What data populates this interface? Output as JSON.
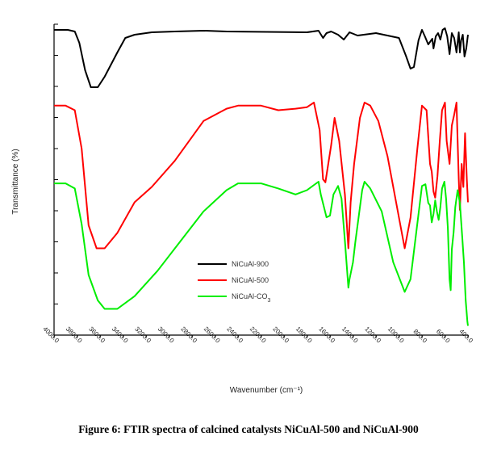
{
  "caption": "Figure 6: FTIR spectra of calcined catalysts NiCuAl-500 and NiCuAl-900",
  "chart_data": {
    "type": "line",
    "xlabel": "Wavenumber (cm⁻¹)",
    "ylabel": "Transmittance (%)",
    "xlim": [
      4000,
      400
    ],
    "x_ticks": [
      4000,
      3800,
      3600,
      3400,
      3200,
      3000,
      2800,
      2600,
      2400,
      2200,
      2000,
      1800,
      1600,
      1400,
      1200,
      1000,
      800,
      600,
      400
    ],
    "y_ticks": 10,
    "legend_position": "center-left",
    "series": [
      {
        "name": "NiCuAl-900",
        "color": "#000000",
        "points": [
          [
            4000,
            2
          ],
          [
            3880,
            2
          ],
          [
            3820,
            4
          ],
          [
            3780,
            18
          ],
          [
            3730,
            52
          ],
          [
            3680,
            73
          ],
          [
            3620,
            73
          ],
          [
            3560,
            60
          ],
          [
            3450,
            30
          ],
          [
            3380,
            12
          ],
          [
            3300,
            8
          ],
          [
            3150,
            5
          ],
          [
            2950,
            4
          ],
          [
            2700,
            3
          ],
          [
            2500,
            4
          ],
          [
            1800,
            5
          ],
          [
            1700,
            3
          ],
          [
            1660,
            12
          ],
          [
            1630,
            6
          ],
          [
            1590,
            4
          ],
          [
            1530,
            8
          ],
          [
            1480,
            14
          ],
          [
            1430,
            5
          ],
          [
            1360,
            9
          ],
          [
            1200,
            6
          ],
          [
            1000,
            12
          ],
          [
            940,
            34
          ],
          [
            900,
            50
          ],
          [
            870,
            48
          ],
          [
            830,
            15
          ],
          [
            800,
            2
          ],
          [
            775,
            10
          ],
          [
            745,
            20
          ],
          [
            710,
            13
          ],
          [
            700,
            25
          ],
          [
            680,
            10
          ],
          [
            660,
            6
          ],
          [
            640,
            14
          ],
          [
            620,
            2
          ],
          [
            600,
            0
          ],
          [
            580,
            10
          ],
          [
            560,
            32
          ],
          [
            540,
            6
          ],
          [
            520,
            12
          ],
          [
            500,
            30
          ],
          [
            480,
            5
          ],
          [
            470,
            30
          ],
          [
            460,
            15
          ],
          [
            445,
            8
          ],
          [
            430,
            35
          ],
          [
            415,
            25
          ],
          [
            400,
            8
          ]
        ]
      },
      {
        "name": "NiCuAl-500",
        "color": "#ff0000",
        "points": [
          [
            4000,
            2
          ],
          [
            3900,
            2
          ],
          [
            3820,
            5
          ],
          [
            3760,
            30
          ],
          [
            3700,
            80
          ],
          [
            3630,
            95
          ],
          [
            3560,
            95
          ],
          [
            3450,
            85
          ],
          [
            3300,
            65
          ],
          [
            3150,
            55
          ],
          [
            2950,
            38
          ],
          [
            2700,
            12
          ],
          [
            2500,
            4
          ],
          [
            2400,
            2
          ],
          [
            2200,
            2
          ],
          [
            2050,
            5
          ],
          [
            1900,
            4
          ],
          [
            1800,
            3
          ],
          [
            1740,
            0
          ],
          [
            1690,
            18
          ],
          [
            1660,
            50
          ],
          [
            1640,
            52
          ],
          [
            1590,
            28
          ],
          [
            1560,
            10
          ],
          [
            1520,
            25
          ],
          [
            1470,
            60
          ],
          [
            1440,
            95
          ],
          [
            1420,
            65
          ],
          [
            1390,
            40
          ],
          [
            1340,
            10
          ],
          [
            1300,
            0
          ],
          [
            1250,
            2
          ],
          [
            1180,
            12
          ],
          [
            1100,
            35
          ],
          [
            1000,
            75
          ],
          [
            950,
            95
          ],
          [
            900,
            75
          ],
          [
            840,
            30
          ],
          [
            800,
            2
          ],
          [
            760,
            5
          ],
          [
            730,
            40
          ],
          [
            715,
            45
          ],
          [
            700,
            58
          ],
          [
            685,
            62
          ],
          [
            665,
            48
          ],
          [
            645,
            25
          ],
          [
            625,
            5
          ],
          [
            600,
            0
          ],
          [
            585,
            25
          ],
          [
            560,
            40
          ],
          [
            540,
            15
          ],
          [
            520,
            8
          ],
          [
            500,
            0
          ],
          [
            480,
            50
          ],
          [
            470,
            70
          ],
          [
            455,
            40
          ],
          [
            440,
            55
          ],
          [
            425,
            20
          ],
          [
            410,
            50
          ],
          [
            400,
            65
          ]
        ]
      },
      {
        "name": "NiCuAl-CO3",
        "color": "#00ee00",
        "points": [
          [
            4000,
            2
          ],
          [
            3900,
            2
          ],
          [
            3820,
            8
          ],
          [
            3760,
            50
          ],
          [
            3700,
            110
          ],
          [
            3620,
            140
          ],
          [
            3560,
            150
          ],
          [
            3450,
            150
          ],
          [
            3300,
            135
          ],
          [
            3100,
            105
          ],
          [
            2900,
            70
          ],
          [
            2700,
            35
          ],
          [
            2500,
            10
          ],
          [
            2400,
            2
          ],
          [
            2200,
            2
          ],
          [
            2050,
            8
          ],
          [
            1900,
            15
          ],
          [
            1800,
            10
          ],
          [
            1700,
            0
          ],
          [
            1680,
            15
          ],
          [
            1630,
            42
          ],
          [
            1600,
            40
          ],
          [
            1570,
            15
          ],
          [
            1530,
            5
          ],
          [
            1500,
            20
          ],
          [
            1470,
            70
          ],
          [
            1440,
            125
          ],
          [
            1430,
            115
          ],
          [
            1400,
            95
          ],
          [
            1380,
            72
          ],
          [
            1320,
            10
          ],
          [
            1300,
            0
          ],
          [
            1250,
            8
          ],
          [
            1150,
            35
          ],
          [
            1050,
            95
          ],
          [
            950,
            130
          ],
          [
            900,
            115
          ],
          [
            850,
            60
          ],
          [
            800,
            5
          ],
          [
            770,
            3
          ],
          [
            745,
            25
          ],
          [
            730,
            28
          ],
          [
            715,
            48
          ],
          [
            700,
            38
          ],
          [
            685,
            22
          ],
          [
            670,
            35
          ],
          [
            655,
            45
          ],
          [
            640,
            30
          ],
          [
            625,
            8
          ],
          [
            605,
            0
          ],
          [
            590,
            20
          ],
          [
            575,
            55
          ],
          [
            560,
            115
          ],
          [
            550,
            128
          ],
          [
            540,
            80
          ],
          [
            525,
            60
          ],
          [
            510,
            30
          ],
          [
            490,
            10
          ],
          [
            470,
            25
          ],
          [
            450,
            65
          ],
          [
            435,
            95
          ],
          [
            420,
            140
          ],
          [
            405,
            165
          ],
          [
            400,
            170
          ]
        ]
      }
    ]
  }
}
